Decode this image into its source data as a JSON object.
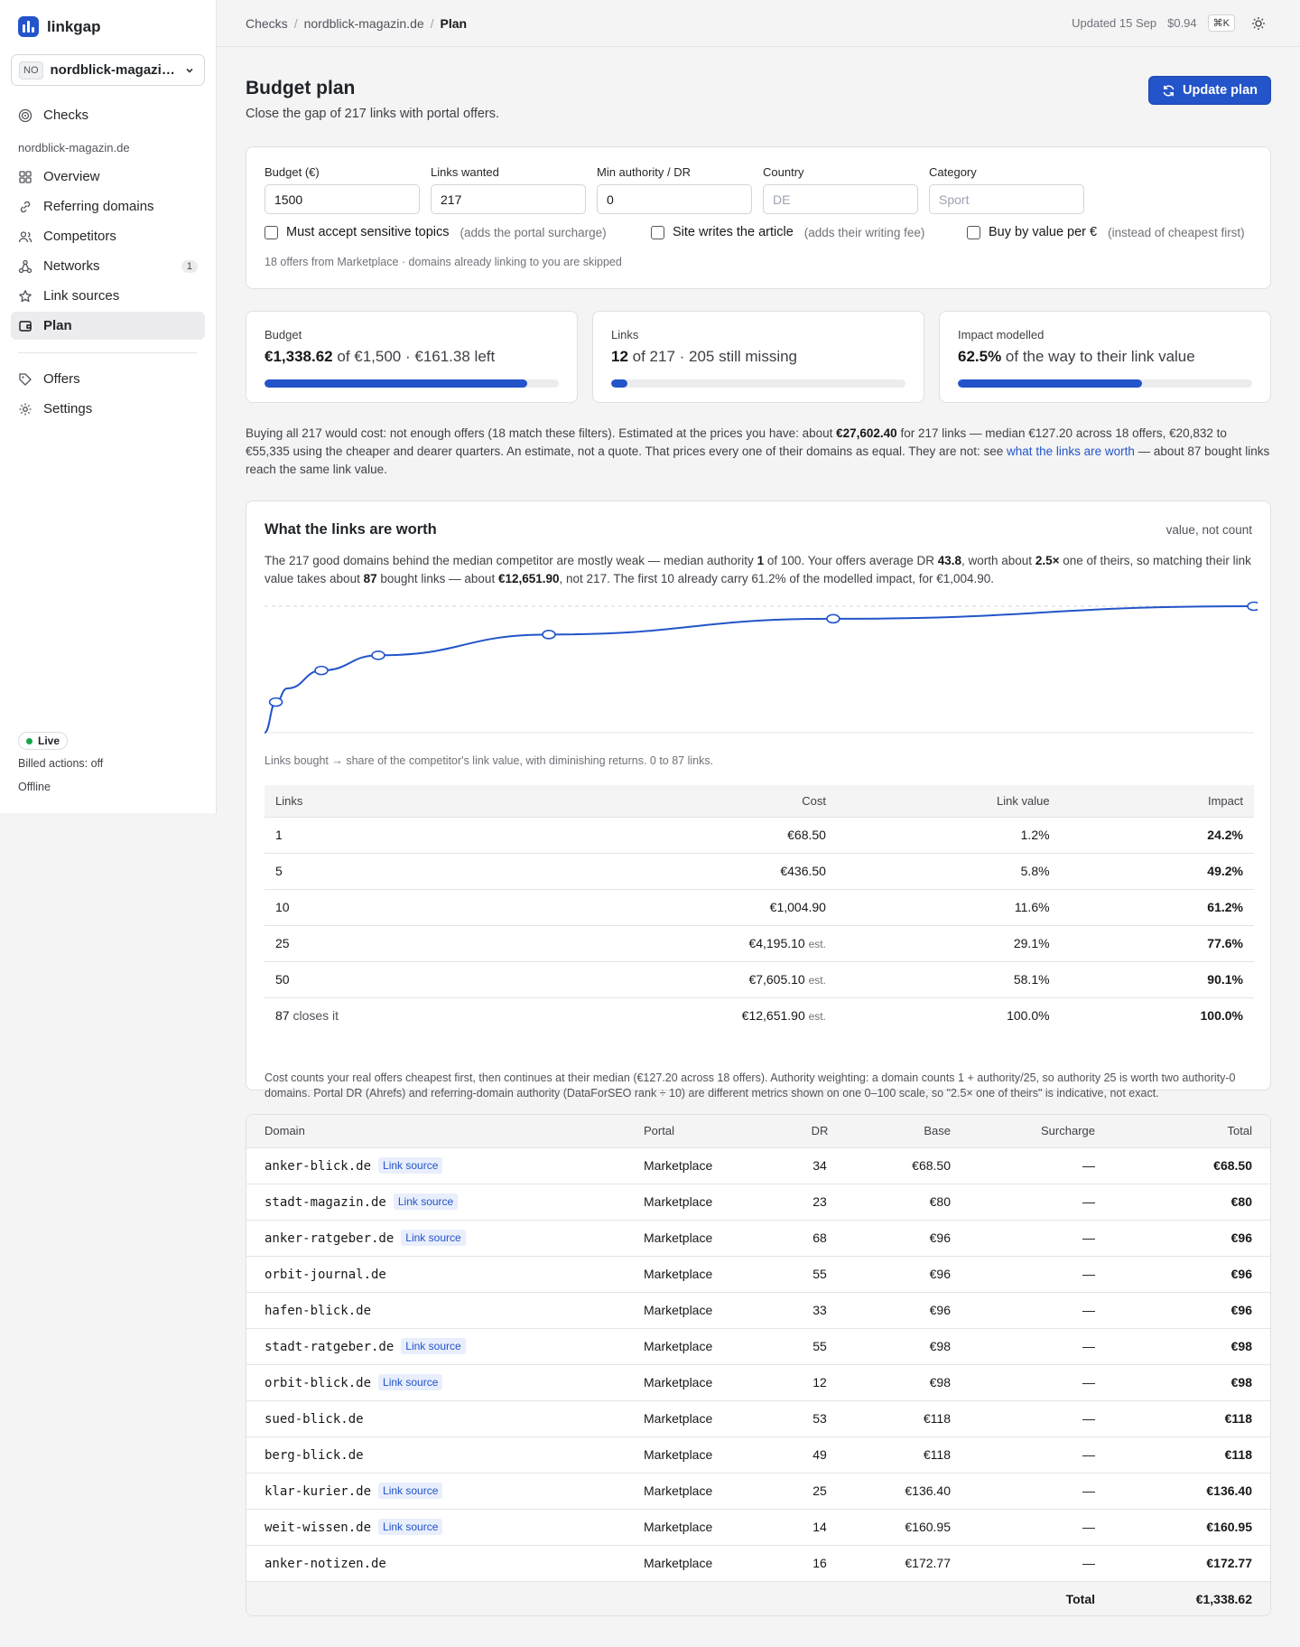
{
  "app": {
    "name": "linkgap"
  },
  "project": {
    "initials": "NO",
    "name": "nordblick-magazin.de"
  },
  "sidebar": {
    "top_item": "Checks",
    "group_label": "nordblick-magazin.de",
    "items": [
      {
        "label": "Overview"
      },
      {
        "label": "Referring domains"
      },
      {
        "label": "Competitors"
      },
      {
        "label": "Networks",
        "count": "1"
      },
      {
        "label": "Link sources"
      },
      {
        "label": "Plan"
      }
    ],
    "bottom_items": [
      {
        "label": "Offers"
      },
      {
        "label": "Settings"
      }
    ],
    "status": {
      "live": "Live",
      "billed": "Billed actions: off",
      "offline": "Offline"
    }
  },
  "topbar": {
    "breadcrumb": [
      "Checks",
      "nordblick-magazin.de",
      "Plan"
    ],
    "updated": "Updated 15 Sep",
    "cost": "$0.94",
    "shortcut": "⌘K"
  },
  "page": {
    "title": "Budget plan",
    "subtitle": "Close the gap of 217 links with portal offers.",
    "update_button": "Update plan"
  },
  "filters": {
    "budget": {
      "label": "Budget (€)",
      "value": "1500"
    },
    "links": {
      "label": "Links wanted",
      "value": "217"
    },
    "min_dr": {
      "label": "Min authority / DR",
      "value": "0"
    },
    "country": {
      "label": "Country",
      "placeholder": "DE"
    },
    "category": {
      "label": "Category",
      "placeholder": "Sport"
    },
    "sensitive": {
      "label": "Must accept sensitive topics",
      "hint": "(adds the portal surcharge)",
      "checked": false
    },
    "writes": {
      "label": "Site writes the article",
      "hint": "(adds their writing fee)",
      "checked": false
    },
    "value": {
      "label": "Buy by value per €",
      "hint": "(instead of cheapest first)",
      "checked": false
    },
    "note": "18 offers from Marketplace · domains already linking to you are skipped"
  },
  "stats": {
    "budget": {
      "label": "Budget",
      "strong": "€1,338.62",
      "rest": " of €1,500 · €161.38 left",
      "progress": 0.892
    },
    "links": {
      "label": "Links",
      "strong": "12",
      "rest": " of 217 · 205 still missing",
      "progress": 0.055
    },
    "impact": {
      "label": "Impact modelled",
      "strong": "62.5%",
      "rest": " of the way to their link value",
      "progress": 0.625
    }
  },
  "summary": {
    "t1": "Buying all 217 would cost: not enough offers (18 match these filters). Estimated at the prices you have: about ",
    "b1": "€27,602.40",
    "t2": " for 217 links — median €127.20 across 18 offers, €20,832 to €55,335 using the cheaper and dearer quarters. An estimate, not a quote. That prices every one of their domains as equal. They are not: see ",
    "link": "what the links are worth",
    "t3": " — about 87 bought links reach the same link value."
  },
  "worth": {
    "title": "What the links are worth",
    "tag": "value, not count",
    "p1": "The 217 good domains behind the median competitor are mostly weak — median authority ",
    "b1": "1",
    "p2": " of 100. Your offers average DR ",
    "b2": "43.8",
    "p3": ", worth about ",
    "b3": "2.5×",
    "p4": " one of theirs, so matching their link value takes about ",
    "b4": "87",
    "p5": " bought links — about ",
    "b5": "€12,651.90",
    "p6": ", not 217. The first 10 already carry 61.2% of the modelled impact, for €1,004.90.",
    "caption": "Links bought → share of the competitor's link value, with diminishing returns. 0 to 87 links.",
    "headers": [
      "Links",
      "Cost",
      "Link value",
      "Impact"
    ],
    "rows": [
      {
        "links": "1",
        "suffix": "",
        "cost": "€68.50",
        "est": "",
        "value": "1.2%",
        "impact": "24.2%"
      },
      {
        "links": "5",
        "suffix": "",
        "cost": "€436.50",
        "est": "",
        "value": "5.8%",
        "impact": "49.2%"
      },
      {
        "links": "10",
        "suffix": "",
        "cost": "€1,004.90",
        "est": "",
        "value": "11.6%",
        "impact": "61.2%"
      },
      {
        "links": "25",
        "suffix": "",
        "cost": "€4,195.10",
        "est": "est.",
        "value": "29.1%",
        "impact": "77.6%"
      },
      {
        "links": "50",
        "suffix": "",
        "cost": "€7,605.10",
        "est": "est.",
        "value": "58.1%",
        "impact": "90.1%"
      },
      {
        "links": "87",
        "suffix": "closes it",
        "cost": "€12,651.90",
        "est": "est.",
        "value": "100.0%",
        "impact": "100.0%"
      }
    ],
    "note": "Cost counts your real offers cheapest first, then continues at their median (€127.20 across 18 offers). Authority weighting: a domain counts 1 + authority/25, so authority 25 is worth two authority-0 domains. Portal DR (Ahrefs) and referring-domain authority (DataForSEO rank ÷ 10) are different metrics shown on one 0–100 scale, so \"2.5× one of theirs\" is indicative, not exact."
  },
  "chart_data": {
    "type": "line",
    "xlabel": "Links bought",
    "ylabel": "Impact",
    "xlim": [
      0,
      87
    ],
    "ylim": [
      0,
      100
    ],
    "x": [
      0,
      1,
      2,
      5,
      10,
      25,
      50,
      87
    ],
    "y": [
      0,
      24.2,
      35,
      49.2,
      61.2,
      77.6,
      90.1,
      100.0
    ],
    "markers": [
      1,
      5,
      10,
      25,
      50,
      87
    ]
  },
  "offers": {
    "headers": [
      "Domain",
      "Portal",
      "DR",
      "Base",
      "Surcharge",
      "Total"
    ],
    "badge": "Link source",
    "rows": [
      {
        "domain": "anker-blick.de",
        "source": true,
        "portal": "Marketplace",
        "dr": "34",
        "base": "€68.50",
        "surcharge": "—",
        "total": "€68.50"
      },
      {
        "domain": "stadt-magazin.de",
        "source": true,
        "portal": "Marketplace",
        "dr": "23",
        "base": "€80",
        "surcharge": "—",
        "total": "€80"
      },
      {
        "domain": "anker-ratgeber.de",
        "source": true,
        "portal": "Marketplace",
        "dr": "68",
        "base": "€96",
        "surcharge": "—",
        "total": "€96"
      },
      {
        "domain": "orbit-journal.de",
        "source": false,
        "portal": "Marketplace",
        "dr": "55",
        "base": "€96",
        "surcharge": "—",
        "total": "€96"
      },
      {
        "domain": "hafen-blick.de",
        "source": false,
        "portal": "Marketplace",
        "dr": "33",
        "base": "€96",
        "surcharge": "—",
        "total": "€96"
      },
      {
        "domain": "stadt-ratgeber.de",
        "source": true,
        "portal": "Marketplace",
        "dr": "55",
        "base": "€98",
        "surcharge": "—",
        "total": "€98"
      },
      {
        "domain": "orbit-blick.de",
        "source": true,
        "portal": "Marketplace",
        "dr": "12",
        "base": "€98",
        "surcharge": "—",
        "total": "€98"
      },
      {
        "domain": "sued-blick.de",
        "source": false,
        "portal": "Marketplace",
        "dr": "53",
        "base": "€118",
        "surcharge": "—",
        "total": "€118"
      },
      {
        "domain": "berg-blick.de",
        "source": false,
        "portal": "Marketplace",
        "dr": "49",
        "base": "€118",
        "surcharge": "—",
        "total": "€118"
      },
      {
        "domain": "klar-kurier.de",
        "source": true,
        "portal": "Marketplace",
        "dr": "25",
        "base": "€136.40",
        "surcharge": "—",
        "total": "€136.40"
      },
      {
        "domain": "weit-wissen.de",
        "source": true,
        "portal": "Marketplace",
        "dr": "14",
        "base": "€160.95",
        "surcharge": "—",
        "total": "€160.95"
      },
      {
        "domain": "anker-notizen.de",
        "source": false,
        "portal": "Marketplace",
        "dr": "16",
        "base": "€172.77",
        "surcharge": "—",
        "total": "€172.77"
      }
    ],
    "total_label": "Total",
    "total_value": "€1,338.62"
  },
  "colors": {
    "accent": "#2354c9",
    "live": "#16a34a"
  }
}
